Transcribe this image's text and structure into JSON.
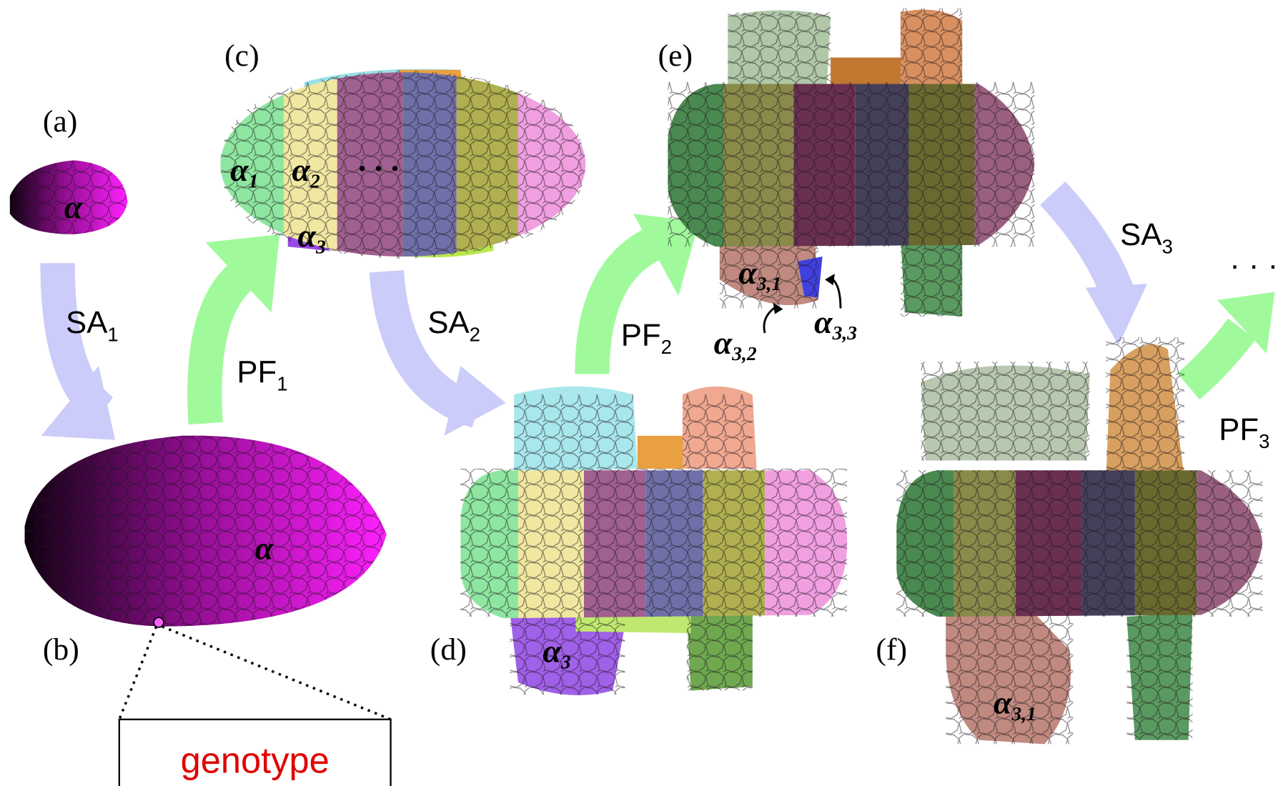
{
  "panels": [
    {
      "label": "(a)"
    },
    {
      "label": "(b)"
    },
    {
      "label": "(c)"
    },
    {
      "label": "(d)"
    },
    {
      "label": "(e)"
    },
    {
      "label": "(f)"
    }
  ],
  "arrows": [
    {
      "base": "SA",
      "sub": "1"
    },
    {
      "base": "PF",
      "sub": "1"
    },
    {
      "base": "SA",
      "sub": "2"
    },
    {
      "base": "PF",
      "sub": "2"
    },
    {
      "base": "SA",
      "sub": "3"
    },
    {
      "base": "PF",
      "sub": "3"
    }
  ],
  "cell_labels": [
    {
      "symbol": "α"
    },
    {
      "symbol": "α"
    },
    {
      "symbol": "α",
      "sub": "1"
    },
    {
      "symbol": "α",
      "sub": "2"
    },
    {
      "symbol": "α",
      "sub": "3"
    },
    {
      "symbol": "α",
      "sub": "3"
    },
    {
      "symbol": "α",
      "sub": "3,1"
    },
    {
      "symbol": "α",
      "sub": "3,2"
    },
    {
      "symbol": "α",
      "sub": "3,3"
    },
    {
      "symbol": "α",
      "sub": "3,1"
    }
  ],
  "ellipses": [
    "· · ·",
    "· · ·"
  ],
  "genotype": "genotype"
}
